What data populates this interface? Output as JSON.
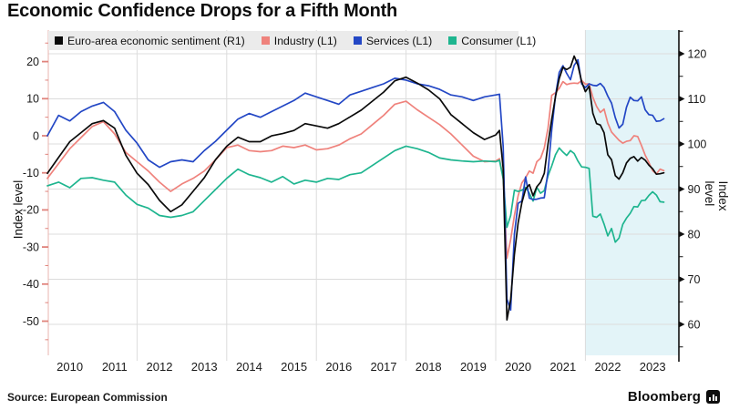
{
  "title": "Economic Confidence Drops for a Fifth Month",
  "source": "Source:  European Commission",
  "brand": "Bloomberg",
  "axes": {
    "left_label": "Index level",
    "right_label": "Index level"
  },
  "legend": [
    {
      "label": "Euro-area economic sentiment (R1)",
      "color": "#0a0a0a"
    },
    {
      "label": "Industry (L1)",
      "color": "#ef827c"
    },
    {
      "label": "Services (L1)",
      "color": "#2347c5"
    },
    {
      "label": "Consumer (L1)",
      "color": "#1eb58f"
    }
  ],
  "chart_data": {
    "type": "line",
    "title": "Economic Confidence Drops for a Fifth Month",
    "x_axis": {
      "year_labels": [
        2010,
        2011,
        2012,
        2013,
        2014,
        2015,
        2016,
        2017,
        2018,
        2019,
        2020,
        2021,
        2022,
        2023
      ]
    },
    "left_axis": {
      "label": "Index level",
      "ticks": [
        20,
        10,
        0,
        -10,
        -20,
        -30,
        -40,
        -50
      ],
      "minor_ticks": [
        25,
        15,
        5,
        -5,
        -15,
        -25,
        -35,
        -45,
        -55
      ],
      "range": [
        -55,
        25
      ],
      "tick_color": "#e0837c"
    },
    "right_axis": {
      "label": "Index level",
      "ticks": [
        120,
        110,
        100,
        90,
        80,
        70,
        60
      ],
      "minor_ticks": [
        125,
        115,
        105,
        95,
        85,
        75,
        65,
        55
      ],
      "range": [
        55,
        125
      ],
      "tick_color": "#111111"
    },
    "gridlines": {
      "vertical_years": [
        2012,
        2014,
        2016,
        2018,
        2020,
        2022
      ],
      "horizontal_right_values": [
        120,
        110,
        100,
        90,
        80,
        70,
        60
      ],
      "color": "#dcdcdc"
    },
    "highlight_region": {
      "from_year": 2022.0,
      "to": "right-edge",
      "color": "#e3f4f8"
    },
    "legend_position": "top-inside",
    "series": [
      {
        "name": "Industry (L1)",
        "axis": "left",
        "color": "#ef827c",
        "quarterly_2010_2019": [
          -11.5,
          -7.5,
          -3.5,
          -0.5,
          2.5,
          3.8,
          0.5,
          -4.5,
          -7,
          -9.5,
          -12.5,
          -15,
          -13,
          -11.5,
          -9.5,
          -6.5,
          -3.2,
          -2.5,
          -4,
          -4.3,
          -4,
          -2.8,
          -3.2,
          -2.5,
          -3.8,
          -3.5,
          -2.5,
          -0.8,
          0.5,
          3,
          5.5,
          8.5,
          9.3,
          7,
          5,
          3,
          0.5,
          -2.5,
          -5.5,
          -7
        ],
        "monthly_from_2020": [
          -6.8,
          -6.2,
          -11.2,
          -33,
          -28,
          -21.5,
          -16.2,
          -12.7,
          -11.3,
          -9.5,
          -10.1,
          -7,
          -6.1,
          -3.3,
          2.1,
          10.9,
          11.6,
          12.8,
          14.6,
          13.8,
          14.1,
          14.2,
          14.1,
          14.9,
          13.9,
          14,
          10.4,
          7.9,
          6.3,
          7.2,
          3.4,
          1,
          -0.1,
          -1.2,
          -2,
          -1.5,
          -1.3,
          0,
          -0.2,
          -2.6,
          -5.2,
          -7.2,
          -9.4,
          -10.3,
          -9,
          -9.4
        ]
      },
      {
        "name": "Consumer (L1)",
        "axis": "left",
        "color": "#1eb58f",
        "quarterly_2010_2019": [
          -13.5,
          -12.5,
          -14,
          -11.5,
          -11.3,
          -12,
          -12.5,
          -16,
          -18.5,
          -19.5,
          -21.5,
          -22,
          -21.5,
          -20.5,
          -17.5,
          -14.5,
          -11.5,
          -9,
          -10.5,
          -11.3,
          -12.5,
          -11,
          -13,
          -12,
          -12.5,
          -11.5,
          -11.8,
          -10.5,
          -10,
          -8,
          -6,
          -4,
          -2.8,
          -3.5,
          -4.5,
          -6,
          -6.5,
          -6.8,
          -7,
          -6.8
        ],
        "monthly_from_2020": [
          -7,
          -6.6,
          -11.6,
          -24.7,
          -21.5,
          -14.7,
          -15,
          -14.7,
          -13.9,
          -15.5,
          -17.6,
          -13.9,
          -15.5,
          -14.8,
          -10.8,
          -8.1,
          -5.1,
          -3.3,
          -4.4,
          -5.3,
          -4,
          -4.8,
          -6.8,
          -8.4,
          -8.5,
          -8.8,
          -21.7,
          -22,
          -21.1,
          -23.8,
          -27,
          -25,
          -28.7,
          -27.6,
          -23.9,
          -22.2,
          -20.9,
          -19.1,
          -19.2,
          -17.5,
          -17.4,
          -16.1,
          -15.1,
          -16,
          -17.8,
          -17.9
        ]
      },
      {
        "name": "Services (L1)",
        "axis": "left",
        "color": "#2347c5",
        "quarterly_2010_2019": [
          0,
          5.5,
          4,
          6.5,
          8,
          9,
          6.5,
          1.5,
          -2,
          -6.5,
          -8.5,
          -7,
          -6.5,
          -7,
          -4,
          -1.5,
          1.5,
          4.5,
          6,
          5,
          6.5,
          8,
          9.5,
          11.5,
          10.5,
          9.5,
          8.5,
          11,
          12,
          13,
          14,
          15.5,
          15,
          14,
          13.5,
          12.5,
          11,
          10.5,
          9.5,
          10.5
        ],
        "monthly_from_2020": [
          11,
          11.2,
          -2.9,
          -44,
          -47,
          -26.5,
          -18.2,
          -17.6,
          -11.1,
          -16.8,
          -17.2,
          -17.1,
          -16.8,
          -16.7,
          -9.6,
          1.7,
          10.8,
          17.1,
          18.9,
          16.8,
          15.1,
          19,
          20.5,
          14,
          13,
          14,
          13.6,
          13.5,
          14.1,
          13,
          10.7,
          8.8,
          4.9,
          2.1,
          3.1,
          7.7,
          10.4,
          9.5,
          9.4,
          10.5,
          7,
          5.7,
          5.5,
          3.9,
          4,
          4.6
        ]
      },
      {
        "name": "Euro-area economic sentiment (R1)",
        "axis": "right",
        "color": "#0a0a0a",
        "quarterly_2010_2019": [
          93.5,
          97,
          100.5,
          102.5,
          104.5,
          105.2,
          103.5,
          97.5,
          93.5,
          91,
          87.5,
          85,
          86.5,
          89.5,
          92.5,
          96.5,
          99.5,
          101.5,
          100.5,
          100.5,
          101.8,
          102.3,
          103,
          104.5,
          104,
          103.5,
          104.5,
          106,
          107.5,
          109.5,
          111.5,
          114,
          114.8,
          113.5,
          112,
          110,
          106.5,
          104.5,
          102.5,
          101
        ],
        "monthly_from_2020": [
          102,
          103,
          94.5,
          61,
          65.5,
          75.5,
          82.5,
          87,
          90,
          91,
          88.5,
          90.5,
          91.5,
          93.5,
          100,
          105.5,
          110.5,
          114.5,
          117,
          116.5,
          117,
          119.5,
          117.5,
          113.8,
          111.6,
          112.8,
          106.8,
          104.5,
          104.2,
          102.5,
          97.6,
          96.5,
          93,
          92.2,
          93.6,
          95.8,
          96.8,
          97.2,
          96.2,
          97,
          96.4,
          95.3,
          94.5,
          93.3,
          93.4,
          93.6
        ]
      }
    ]
  }
}
